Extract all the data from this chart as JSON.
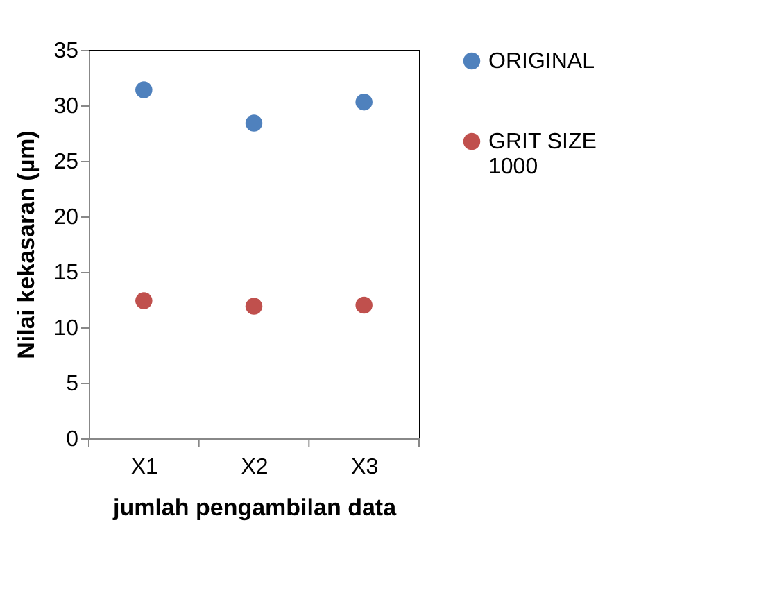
{
  "chart_data": {
    "type": "scatter",
    "xlabel": "jumlah pengambilan data",
    "ylabel": "Nilai kekasaran (µm)",
    "categories": [
      "X1",
      "X2",
      "X3"
    ],
    "series": [
      {
        "name": "ORIGINAL",
        "color": "#4f81bd",
        "values": [
          31.4,
          28.4,
          30.3
        ]
      },
      {
        "name": "GRIT SIZE 1000",
        "color": "#c0504d",
        "values": [
          12.4,
          11.9,
          12.0
        ]
      }
    ],
    "ylim": [
      0,
      35
    ],
    "yticks": [
      0,
      5,
      10,
      15,
      20,
      25,
      30,
      35
    ],
    "grid": false,
    "legend": "right",
    "marker": "circle"
  }
}
